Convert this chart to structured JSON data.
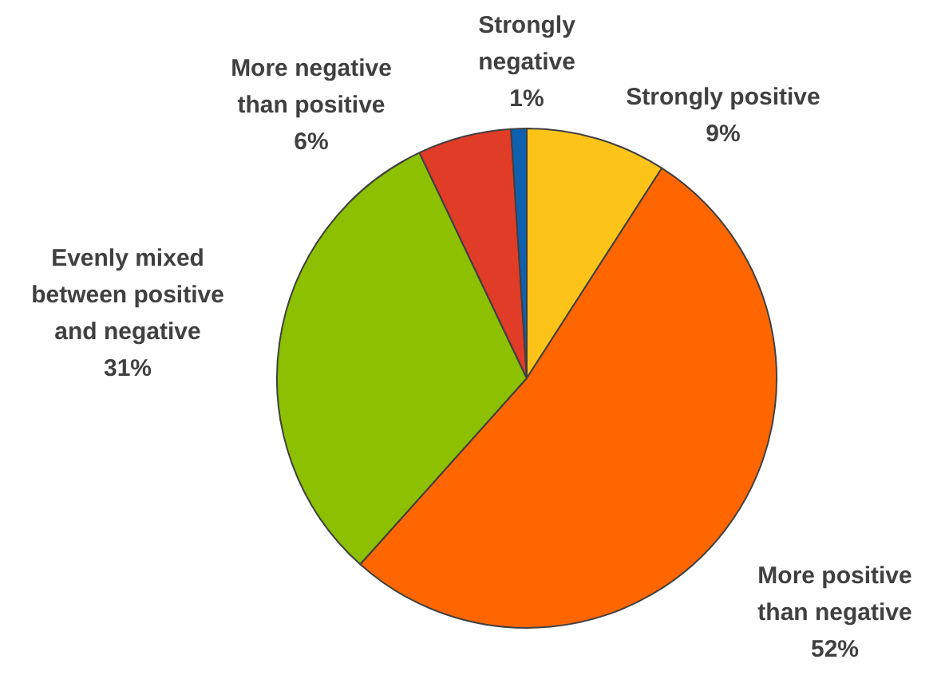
{
  "chart_data": {
    "type": "pie",
    "categories": [
      "Strongly positive",
      "More positive than negative",
      "Evenly mixed between positive and negative",
      "More negative than positive",
      "Strongly negative"
    ],
    "values": [
      9,
      52,
      31,
      6,
      1
    ],
    "value_labels": [
      "9%",
      "52%",
      "31%",
      "6%",
      "1%"
    ],
    "colors": [
      "#fcc419",
      "#ff6600",
      "#8cc000",
      "#e03c28",
      "#1060b0"
    ],
    "legend": false
  }
}
